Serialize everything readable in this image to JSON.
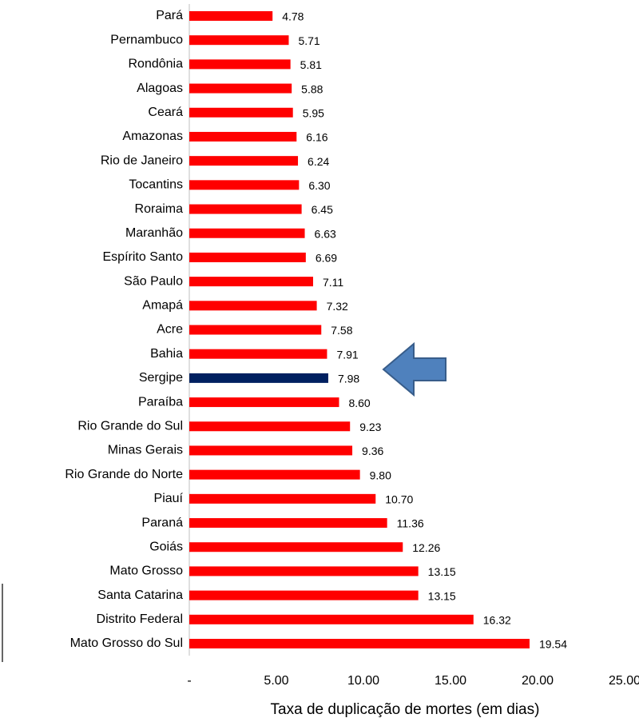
{
  "chart_data": {
    "type": "barh",
    "x_label": "Taxa de duplicação de mortes (em dias)",
    "categories": [
      "Pará",
      "Pernambuco",
      "Rondônia",
      "Alagoas",
      "Ceará",
      "Amazonas",
      "Rio de Janeiro",
      "Tocantins",
      "Roraima",
      "Maranhão",
      "Espírito Santo",
      "São Paulo",
      "Amapá",
      "Acre",
      "Bahia",
      "Sergipe",
      "Paraíba",
      "Rio Grande do Sul",
      "Minas Gerais",
      "Rio Grande do Norte",
      "Piauí",
      "Paraná",
      "Goiás",
      "Mato Grosso",
      "Santa Catarina",
      "Distrito Federal",
      "Mato Grosso do Sul"
    ],
    "values": [
      4.78,
      5.71,
      5.81,
      5.88,
      5.95,
      6.16,
      6.24,
      6.3,
      6.45,
      6.63,
      6.69,
      7.11,
      7.32,
      7.58,
      7.91,
      7.98,
      8.6,
      9.23,
      9.36,
      9.8,
      10.7,
      11.36,
      12.26,
      13.15,
      13.15,
      16.32,
      19.54
    ],
    "value_labels": [
      "4.78",
      "5.71",
      "5.81",
      "5.88",
      "5.95",
      "6.16",
      "6.24",
      "6.30",
      "6.45",
      "6.63",
      "6.69",
      "7.11",
      "7.32",
      "7.58",
      "7.91",
      "7.98",
      "8.60",
      "9.23",
      "9.36",
      "9.80",
      "10.70",
      "11.36",
      "12.26",
      "13.15",
      "13.15",
      "16.32",
      "19.54"
    ],
    "colors": [
      "#ff0000",
      "#ff0000",
      "#ff0000",
      "#ff0000",
      "#ff0000",
      "#ff0000",
      "#ff0000",
      "#ff0000",
      "#ff0000",
      "#ff0000",
      "#ff0000",
      "#ff0000",
      "#ff0000",
      "#ff0000",
      "#ff0000",
      "#002060",
      "#ff0000",
      "#ff0000",
      "#ff0000",
      "#ff0000",
      "#ff0000",
      "#ff0000",
      "#ff0000",
      "#ff0000",
      "#ff0000",
      "#ff0000",
      "#ff0000"
    ],
    "xlim": [
      0,
      25
    ],
    "xticks": [
      {
        "value": 0,
        "label": "-"
      },
      {
        "value": 5,
        "label": "5.00"
      },
      {
        "value": 10,
        "label": "10.00"
      },
      {
        "value": 15,
        "label": "15.00"
      },
      {
        "value": 20,
        "label": "20.00"
      },
      {
        "value": 25,
        "label": "25.00"
      }
    ]
  }
}
